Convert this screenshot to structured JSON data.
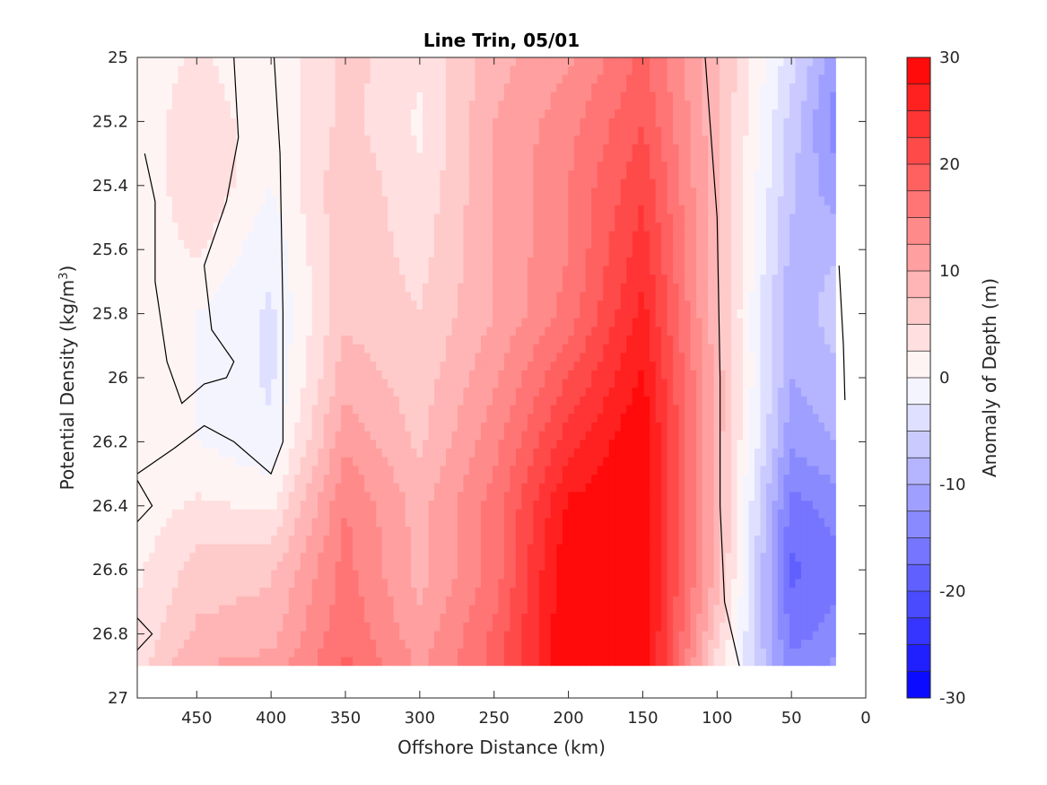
{
  "chart_data": {
    "type": "contour",
    "title": "Line Trin, 05/01",
    "xlabel": "Offshore Distance (km)",
    "ylabel": "Potential Density (kg/m",
    "ylabel_sup": "3",
    "ylabel_close": ")",
    "colorbar_label": "Anomaly of Depth (m)",
    "xlim": [
      490,
      0
    ],
    "xdir": "reverse",
    "ylim": [
      27,
      25
    ],
    "ydir": "reverse",
    "xticks": [
      450,
      400,
      350,
      300,
      250,
      200,
      150,
      100,
      50,
      0
    ],
    "yticks": [
      25,
      25.2,
      25.4,
      25.6,
      25.8,
      26,
      26.2,
      26.4,
      26.6,
      26.8,
      27
    ],
    "ytick_labels": [
      "25",
      "25.2",
      "25.4",
      "25.6",
      "25.8",
      "26",
      "26.2",
      "26.4",
      "26.6",
      "26.8",
      "27"
    ],
    "clim": [
      -30,
      30
    ],
    "colorbar_ticks": [
      30,
      20,
      10,
      0,
      -10,
      -20,
      -30
    ],
    "colorbar_levels": 24,
    "colormap": {
      "negative": "#0000ff",
      "zero": "#ffffff",
      "positive": "#ff0000"
    },
    "data_ymax": 26.9,
    "xgrid": [
      490,
      450,
      400,
      350,
      300,
      250,
      200,
      150,
      100,
      50,
      20
    ],
    "ygrid": [
      25,
      25.2,
      25.4,
      25.6,
      25.8,
      26,
      26.2,
      26.4,
      26.6,
      26.8,
      26.9
    ],
    "z": [
      [
        0,
        3,
        0,
        6,
        3,
        9,
        12,
        18,
        8,
        -4,
        -12
      ],
      [
        0,
        5,
        0,
        6,
        2,
        10,
        14,
        20,
        8,
        -6,
        -14
      ],
      [
        0,
        5,
        0,
        7,
        3,
        10,
        15,
        22,
        8,
        -7,
        -12
      ],
      [
        0,
        3,
        -2,
        7,
        4,
        10,
        15,
        24,
        8,
        -8,
        -8
      ],
      [
        0,
        0,
        -3,
        7,
        5,
        10,
        16,
        26,
        8,
        -10,
        -6
      ],
      [
        0,
        0,
        -3,
        9,
        6,
        12,
        20,
        28,
        9,
        -10,
        -8
      ],
      [
        0,
        0,
        -2,
        12,
        7,
        14,
        24,
        30,
        9,
        -12,
        -10
      ],
      [
        1,
        3,
        2,
        15,
        9,
        16,
        28,
        30,
        9,
        -16,
        -14
      ],
      [
        2,
        6,
        7,
        16,
        9,
        16,
        30,
        30,
        9,
        -18,
        -16
      ],
      [
        3,
        8,
        9,
        17,
        11,
        18,
        30,
        30,
        6,
        -16,
        -14
      ],
      [
        4,
        10,
        11,
        18,
        12,
        18,
        30,
        30,
        4,
        -14,
        -12
      ]
    ],
    "zero_contour_lines": [
      [
        [
          485,
          25.3
        ],
        [
          478,
          25.45
        ],
        [
          478,
          25.7
        ],
        [
          470,
          25.95
        ],
        [
          460,
          26.08
        ],
        [
          445,
          26.02
        ],
        [
          430,
          26.0
        ],
        [
          425,
          25.95
        ],
        [
          440,
          25.85
        ],
        [
          445,
          25.65
        ],
        [
          430,
          25.45
        ],
        [
          422,
          25.25
        ],
        [
          425,
          25.0
        ]
      ],
      [
        [
          398,
          25.0
        ],
        [
          394,
          25.3
        ],
        [
          392,
          25.8
        ],
        [
          392,
          26.2
        ],
        [
          400,
          26.3
        ],
        [
          425,
          26.2
        ],
        [
          445,
          26.15
        ],
        [
          465,
          26.22
        ],
        [
          490,
          26.3
        ]
      ],
      [
        [
          490,
          26.32
        ],
        [
          480,
          26.4
        ],
        [
          490,
          26.45
        ]
      ],
      [
        [
          490,
          26.75
        ],
        [
          480,
          26.8
        ],
        [
          490,
          26.85
        ]
      ],
      [
        [
          108,
          25.0
        ],
        [
          100,
          25.5
        ],
        [
          98,
          26.0
        ],
        [
          98,
          26.4
        ],
        [
          95,
          26.7
        ],
        [
          85,
          26.9
        ]
      ],
      [
        [
          18,
          25.65
        ],
        [
          15,
          25.9
        ],
        [
          14,
          26.07
        ]
      ]
    ]
  }
}
